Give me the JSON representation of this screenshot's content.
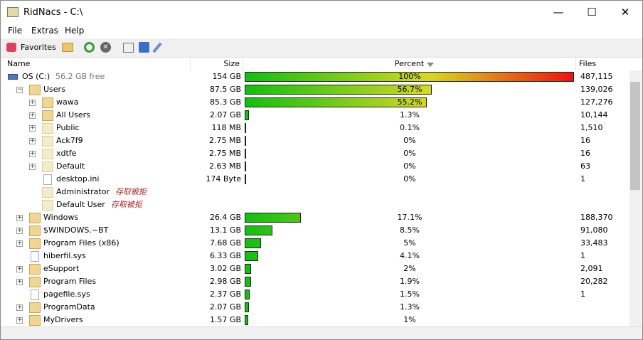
{
  "window": {
    "title": "RidNacs - C:\\"
  },
  "menu": [
    "File",
    "Extras",
    "Help"
  ],
  "toolbar": {
    "favorites": "Favorites"
  },
  "columns": [
    "Name",
    "Size",
    "Percent",
    "Files"
  ],
  "tree": {
    "name": "OS (C:)",
    "free": "56.2 GB free",
    "kind": "drive",
    "size": "154 GB",
    "percent": 100,
    "percent_label": "100%",
    "files": "487,115",
    "children": [
      {
        "name": "Users",
        "kind": "folder",
        "size": "87.5 GB",
        "percent": 56.7,
        "percent_label": "56.7%",
        "files": "139,026",
        "children": [
          {
            "name": "wawa",
            "kind": "folder",
            "size": "85.3 GB",
            "percent": 55.2,
            "percent_label": "55.2%",
            "files": "127,276"
          },
          {
            "name": "All Users",
            "kind": "folder",
            "size": "2.07 GB",
            "percent": 1.3,
            "percent_label": "1.3%",
            "files": "10,144"
          },
          {
            "name": "Public",
            "kind": "folder",
            "size": "118 MB",
            "percent": 0.1,
            "percent_label": "0.1%",
            "files": "1,510"
          },
          {
            "name": "Ack7f9",
            "kind": "folder",
            "size": "2.75 MB",
            "percent": 0,
            "percent_label": "0%",
            "files": "16"
          },
          {
            "name": "xdtfe",
            "kind": "folder",
            "size": "2.75 MB",
            "percent": 0,
            "percent_label": "0%",
            "files": "16"
          },
          {
            "name": "Default",
            "kind": "folder",
            "size": "2.63 MB",
            "percent": 0,
            "percent_label": "0%",
            "files": "63"
          },
          {
            "name": "desktop.ini",
            "kind": "file",
            "size": "174 Byte",
            "percent": 0,
            "percent_label": "0%",
            "files": "1"
          },
          {
            "name": "Administrator",
            "kind": "locked",
            "note": "存取被拒"
          },
          {
            "name": "Default User",
            "kind": "locked",
            "note": "存取被拒"
          }
        ]
      },
      {
        "name": "Windows",
        "kind": "folder",
        "size": "26.4 GB",
        "percent": 17.1,
        "percent_label": "17.1%",
        "files": "188,370"
      },
      {
        "name": "$WINDOWS.~BT",
        "kind": "folder",
        "size": "13.1 GB",
        "percent": 8.5,
        "percent_label": "8.5%",
        "files": "91,080"
      },
      {
        "name": "Program Files (x86)",
        "kind": "folder",
        "size": "7.68 GB",
        "percent": 5,
        "percent_label": "5%",
        "files": "33,483"
      },
      {
        "name": "hiberfil.sys",
        "kind": "file",
        "size": "6.33 GB",
        "percent": 4.1,
        "percent_label": "4.1%",
        "files": "1"
      },
      {
        "name": "eSupport",
        "kind": "folder",
        "size": "3.02 GB",
        "percent": 2,
        "percent_label": "2%",
        "files": "2,091"
      },
      {
        "name": "Program Files",
        "kind": "folder",
        "size": "2.98 GB",
        "percent": 1.9,
        "percent_label": "1.9%",
        "files": "20,282"
      },
      {
        "name": "pagefile.sys",
        "kind": "file",
        "size": "2.37 GB",
        "percent": 1.5,
        "percent_label": "1.5%",
        "files": "1"
      },
      {
        "name": "ProgramData",
        "kind": "folder",
        "size": "2.07 GB",
        "percent": 1.3,
        "percent_label": "1.3%"
      },
      {
        "name": "MyDrivers",
        "kind": "folder",
        "size": "1.57 GB",
        "percent": 1,
        "percent_label": "1%"
      }
    ]
  }
}
